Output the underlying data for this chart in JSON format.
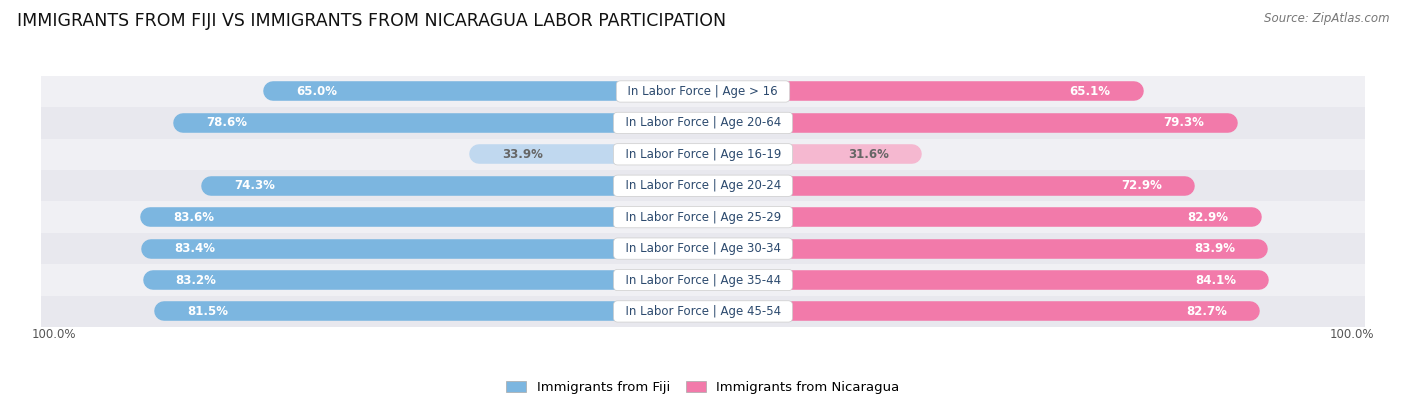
{
  "title": "IMMIGRANTS FROM FIJI VS IMMIGRANTS FROM NICARAGUA LABOR PARTICIPATION",
  "source": "Source: ZipAtlas.com",
  "categories": [
    "In Labor Force | Age > 16",
    "In Labor Force | Age 20-64",
    "In Labor Force | Age 16-19",
    "In Labor Force | Age 20-24",
    "In Labor Force | Age 25-29",
    "In Labor Force | Age 30-34",
    "In Labor Force | Age 35-44",
    "In Labor Force | Age 45-54"
  ],
  "fiji_values": [
    65.0,
    78.6,
    33.9,
    74.3,
    83.6,
    83.4,
    83.2,
    81.5
  ],
  "nicaragua_values": [
    65.1,
    79.3,
    31.6,
    72.9,
    82.9,
    83.9,
    84.1,
    82.7
  ],
  "fiji_color": "#7cb6e0",
  "fiji_color_light": "#c0d8ef",
  "nicaragua_color": "#f27aaa",
  "nicaragua_color_light": "#f5b8d0",
  "row_bg_even": "#f0f0f4",
  "row_bg_odd": "#e8e8ee",
  "max_value": 100.0,
  "title_fontsize": 12.5,
  "label_fontsize": 8.5,
  "value_fontsize": 8.5,
  "legend_fontsize": 9.5,
  "footer_fontsize": 8.5
}
